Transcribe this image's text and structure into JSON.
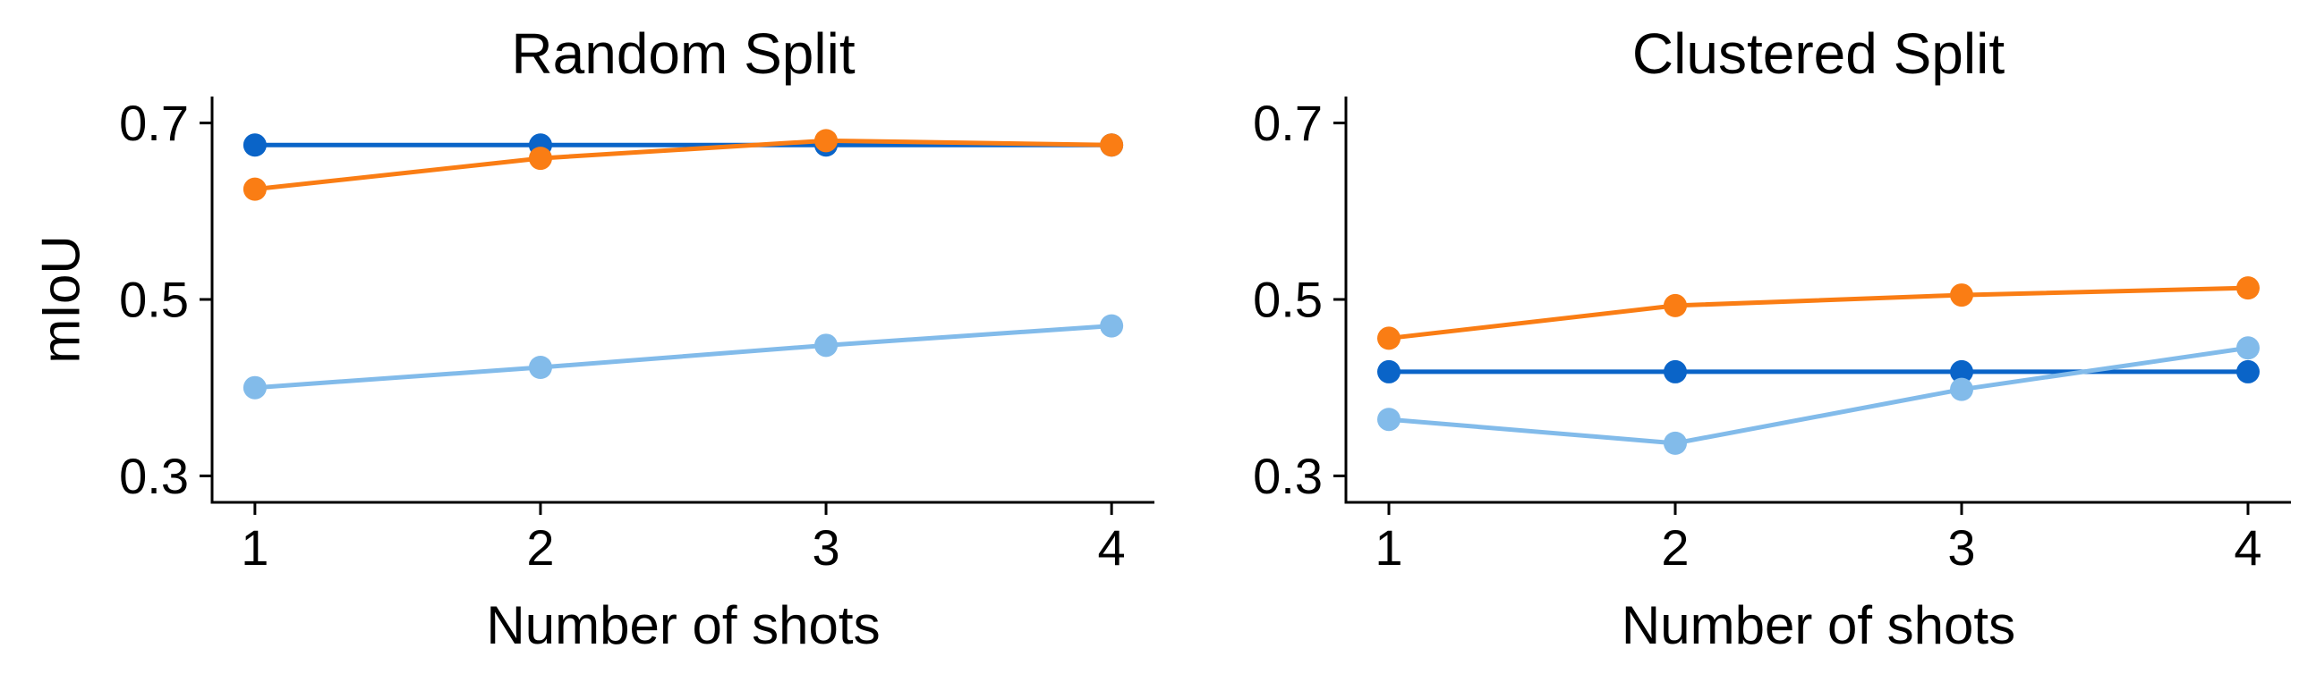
{
  "chart_data": [
    {
      "type": "line",
      "title": "Random Split",
      "xlabel": "Number of shots",
      "ylabel": "mIoU",
      "x": [
        1,
        2,
        3,
        4
      ],
      "xticks": [
        "1",
        "2",
        "3",
        "4"
      ],
      "xlim": [
        0.85,
        4.15
      ],
      "yticks": [
        "0.3",
        "0.5",
        "0.7"
      ],
      "ylim": [
        0.27,
        0.73
      ],
      "grid": false,
      "series": [
        {
          "color": "#0a64c8",
          "values": [
            0.675,
            0.675,
            0.675,
            0.675
          ]
        },
        {
          "color": "#fa7d14",
          "values": [
            0.625,
            0.66,
            0.68,
            0.675
          ]
        },
        {
          "color": "#82bbea",
          "values": [
            0.4,
            0.423,
            0.448,
            0.47
          ]
        }
      ]
    },
    {
      "type": "line",
      "title": "Clustered Split",
      "xlabel": "Number of shots",
      "ylabel": "",
      "x": [
        1,
        2,
        3,
        4
      ],
      "xticks": [
        "1",
        "2",
        "3",
        "4"
      ],
      "xlim": [
        0.85,
        4.15
      ],
      "yticks": [
        "0.3",
        "0.5",
        "0.7"
      ],
      "ylim": [
        0.27,
        0.73
      ],
      "grid": false,
      "series": [
        {
          "color": "#0a64c8",
          "values": [
            0.418,
            0.418,
            0.418,
            0.418
          ]
        },
        {
          "color": "#fa7d14",
          "values": [
            0.456,
            0.493,
            0.505,
            0.513
          ]
        },
        {
          "color": "#82bbea",
          "values": [
            0.364,
            0.337,
            0.398,
            0.445
          ]
        }
      ]
    }
  ]
}
